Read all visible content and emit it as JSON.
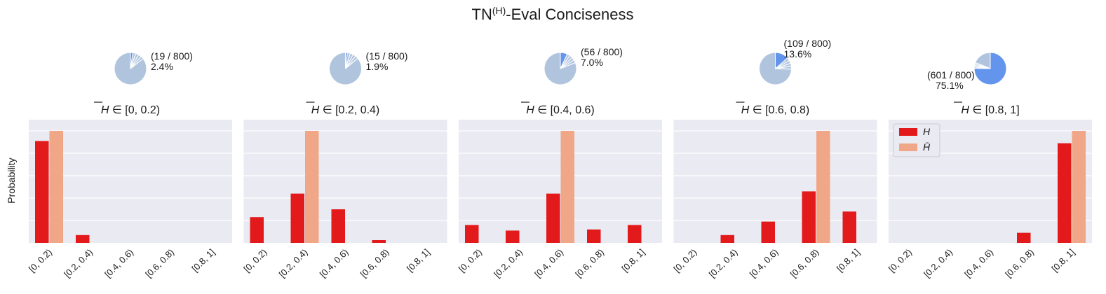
{
  "title_main": "TN",
  "title_sup": "(H)",
  "title_rest": "-Eval Conciseness",
  "ylabel": "Probability",
  "legend": {
    "items": [
      {
        "name": "H",
        "color": "#e31a1c"
      },
      {
        "name": "H̄",
        "color": "#f0a787"
      }
    ],
    "placement": "top-left of last panel"
  },
  "colors": {
    "H": "#e31a1c",
    "Hbar": "#f0a787",
    "pie_rest": "#b0c4de",
    "pie_highlight": "#6495ed",
    "panel_bg": "#eaeaf2",
    "grid": "#ffffff"
  },
  "chart_data": [
    {
      "type": "bar",
      "title_prefix": "H̄",
      "title_range": "[0, 0.2)",
      "categories": [
        "[0, 0.2)",
        "[0.2, 0.4)",
        "[0.4, 0.6)",
        "[0.6, 0.8)",
        "[0.8, 1]"
      ],
      "series": [
        {
          "name": "H",
          "values": [
            0.91,
            0.07,
            0,
            0,
            0
          ]
        },
        {
          "name": "H̄",
          "values": [
            1,
            0,
            0,
            0,
            0
          ]
        }
      ],
      "ylim": [
        0,
        1.1
      ],
      "grid": true,
      "pie": {
        "count": "(19 / 800)",
        "percent": "2.4%",
        "fraction": 0.024
      }
    },
    {
      "type": "bar",
      "title_prefix": "H̄",
      "title_range": "[0.2, 0.4)",
      "categories": [
        "[0, 0.2)",
        "[0.2, 0.4)",
        "[0.4, 0.6)",
        "[0.6, 0.8)",
        "[0.8, 1]"
      ],
      "series": [
        {
          "name": "H",
          "values": [
            0.23,
            0.44,
            0.3,
            0.025,
            0
          ]
        },
        {
          "name": "H̄",
          "values": [
            0,
            1,
            0,
            0,
            0
          ]
        }
      ],
      "ylim": [
        0,
        1.1
      ],
      "grid": true,
      "pie": {
        "count": "(15 / 800)",
        "percent": "1.9%",
        "fraction": 0.019
      }
    },
    {
      "type": "bar",
      "title_prefix": "H̄",
      "title_range": "[0.4, 0.6)",
      "categories": [
        "[0, 0.2)",
        "[0.2, 0.4)",
        "[0.4, 0.6)",
        "[0.6, 0.8)",
        "[0.8, 1]"
      ],
      "series": [
        {
          "name": "H",
          "values": [
            0.16,
            0.11,
            0.44,
            0.12,
            0.16
          ]
        },
        {
          "name": "H̄",
          "values": [
            0,
            0,
            1,
            0,
            0
          ]
        }
      ],
      "ylim": [
        0,
        1.1
      ],
      "grid": true,
      "pie": {
        "count": "(56 / 800)",
        "percent": "7.0%",
        "fraction": 0.07
      }
    },
    {
      "type": "bar",
      "title_prefix": "H̄",
      "title_range": "[0.6, 0.8)",
      "categories": [
        "[0, 0.2)",
        "[0.2, 0.4)",
        "[0.4, 0.6)",
        "[0.6, 0.8)",
        "[0.8, 1]"
      ],
      "series": [
        {
          "name": "H",
          "values": [
            0,
            0.07,
            0.19,
            0.46,
            0.28
          ]
        },
        {
          "name": "H̄",
          "values": [
            0,
            0,
            0,
            1,
            0
          ]
        }
      ],
      "ylim": [
        0,
        1.1
      ],
      "grid": true,
      "pie": {
        "count": "(109 / 800)",
        "percent": "13.6%",
        "fraction": 0.136
      }
    },
    {
      "type": "bar",
      "title_prefix": "H̄",
      "title_range": "[0.8, 1]",
      "categories": [
        "[0, 0.2)",
        "[0.2, 0.4)",
        "[0.4, 0.6)",
        "[0.6, 0.8)",
        "[0.8, 1]"
      ],
      "series": [
        {
          "name": "H",
          "values": [
            0,
            0,
            0,
            0.09,
            0.89
          ]
        },
        {
          "name": "H̄",
          "values": [
            0,
            0,
            0,
            0,
            1
          ]
        }
      ],
      "ylim": [
        0,
        1.1
      ],
      "grid": true,
      "pie": {
        "count": "(601 / 800)",
        "percent": "75.1%",
        "fraction": 0.751
      }
    }
  ]
}
